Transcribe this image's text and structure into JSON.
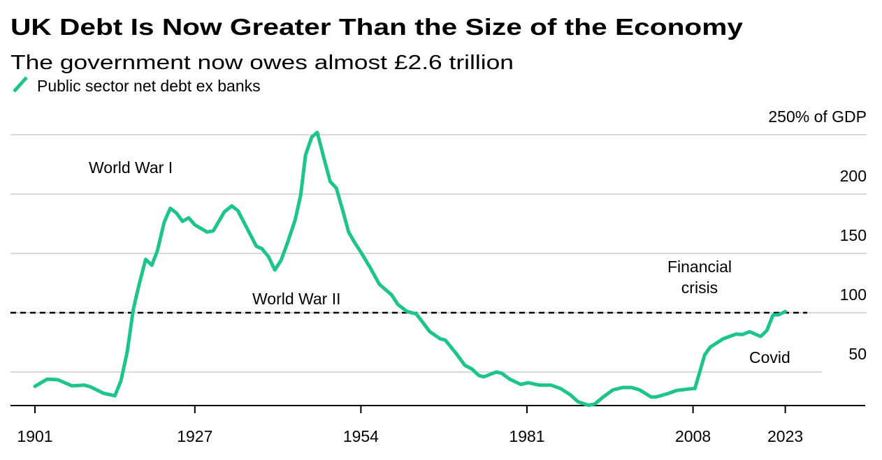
{
  "chart_data": {
    "type": "line",
    "title": "UK Debt Is Now Greater Than the Size of the Economy",
    "subtitle": "The government now owes almost £2.6 trillion",
    "legend": [
      {
        "label": "Public sector net debt ex banks",
        "color": "#1dc48d"
      }
    ],
    "legend_placement": "top-left",
    "xlabel": "",
    "ylabel": "% of GDP",
    "x_ticks": [
      "1901",
      "1927",
      "1954",
      "1981",
      "2008",
      "2023"
    ],
    "x_tick_values": [
      1901,
      1927,
      1954,
      1981,
      2008,
      2023
    ],
    "y_ticks": [
      "250% of GDP",
      "200",
      "150",
      "100",
      "50"
    ],
    "y_tick_values": [
      250,
      200,
      150,
      100,
      50
    ],
    "ylim": [
      22,
      255
    ],
    "xlim": [
      1901,
      2023
    ],
    "grid": true,
    "reference_line": {
      "value": 100,
      "style": "dashed",
      "color": "#000000"
    },
    "annotations": [
      {
        "text": "World War I"
      },
      {
        "text": "World War II"
      },
      {
        "text": "Financial",
        "text2": "crisis"
      },
      {
        "text": "Covid"
      }
    ],
    "series": [
      {
        "name": "Public sector net debt ex banks",
        "color": "#1dc48d",
        "x": [
          1901,
          1903,
          1904.7,
          1907,
          1909,
          1910,
          1912.2,
          1914,
          1915,
          1916,
          1917,
          1917.9,
          1919,
          1920,
          1920.9,
          1922,
          1923,
          1924,
          1925,
          1926,
          1927,
          1929,
          1930,
          1931.8,
          1933,
          1934,
          1935.3,
          1937,
          1937.9,
          1939,
          1940,
          1941,
          1942,
          1943.3,
          1944.2,
          1945,
          1946,
          1946.9,
          1948,
          1949,
          1950,
          1951,
          1952,
          1953,
          1954,
          1955.5,
          1957,
          1959,
          1960,
          1961.5,
          1963,
          1965.2,
          1966.9,
          1967.7,
          1969.5,
          1970.9,
          1972,
          1973.2,
          1974,
          1976,
          1976.9,
          1978.2,
          1980,
          1981.2,
          1983,
          1984.9,
          1986.5,
          1988,
          1989.3,
          1991,
          1992,
          1993.4,
          1995,
          1996.6,
          1998,
          1999.3,
          2001.2,
          2002,
          2004,
          2005.3,
          2007.8,
          2008.3,
          2009.9,
          2010.8,
          2012.9,
          2015,
          2016,
          2017.2,
          2019,
          2020,
          2021,
          2022,
          2023
        ],
        "values": [
          38,
          44,
          43.5,
          38.4,
          39,
          37.6,
          32,
          30,
          43,
          67,
          103,
          123,
          145,
          140,
          152,
          176,
          188,
          184,
          177,
          180,
          174,
          168,
          169,
          185,
          190,
          186,
          173,
          156,
          154,
          147,
          136,
          144,
          158,
          178,
          199,
          233,
          248,
          252,
          230,
          210.6,
          205,
          187,
          168,
          159,
          151,
          138,
          124,
          115,
          107,
          101,
          99,
          84,
          78,
          77,
          65.5,
          55.7,
          52.7,
          47,
          46,
          50,
          49,
          44,
          39.6,
          41,
          39,
          39,
          36,
          31,
          25,
          22,
          23,
          29,
          35,
          37,
          37,
          35,
          29,
          29,
          32,
          34.5,
          36,
          36,
          64.5,
          71,
          78,
          82,
          81.6,
          84,
          80,
          85,
          98,
          98.4,
          101
        ]
      }
    ]
  }
}
